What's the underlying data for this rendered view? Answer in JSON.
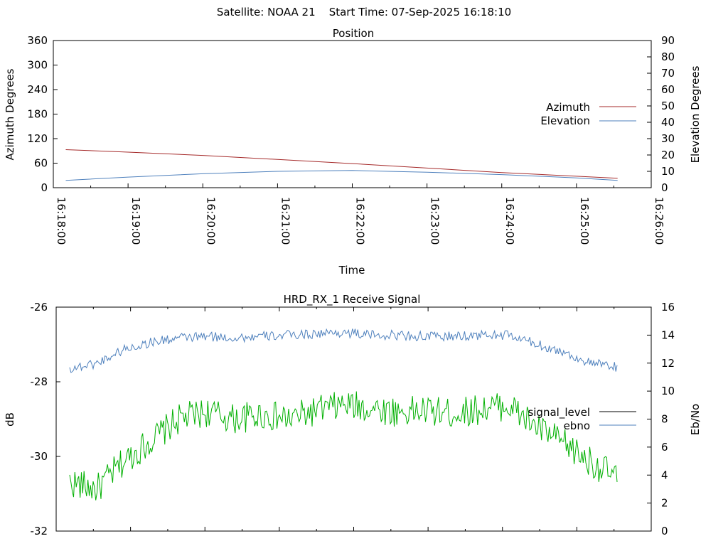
{
  "header": {
    "title": "Satellite: NOAA 21    Start Time: 07-Sep-2025 16:18:10"
  },
  "colors": {
    "azimuth": "#a52a2a",
    "elevation": "#4f81bd",
    "signal_level": "#00b000",
    "ebno": "#4f81bd",
    "signal_level_legend": "#000000"
  },
  "chart_data": [
    {
      "type": "line",
      "title": "Position",
      "xlabel": "Time",
      "ylabel_left": "Azimuth Degrees",
      "ylabel_right": "Elevation Degrees",
      "x_ticks": [
        "16:18:00",
        "16:19:00",
        "16:20:00",
        "16:21:00",
        "16:22:00",
        "16:23:00",
        "16:24:00",
        "16:25:00",
        "16:26:00"
      ],
      "xlim_seconds": [
        0,
        480
      ],
      "ylim_left": [
        0,
        360
      ],
      "ylim_right": [
        0,
        90
      ],
      "y_ticks_left": [
        "0",
        "60",
        "120",
        "180",
        "240",
        "300",
        "360"
      ],
      "y_ticks_right": [
        "0",
        "10",
        "20",
        "30",
        "40",
        "50",
        "60",
        "70",
        "80",
        "90"
      ],
      "legend": "right",
      "series": [
        {
          "name": "Azimuth",
          "axis": "left",
          "x": [
            "16:18:10",
            "16:19:00",
            "16:20:00",
            "16:21:00",
            "16:22:00",
            "16:23:00",
            "16:24:00",
            "16:25:00",
            "16:25:33"
          ],
          "values": [
            93,
            87,
            79,
            69,
            59,
            48,
            37,
            28,
            23
          ]
        },
        {
          "name": "Elevation",
          "axis": "right",
          "x": [
            "16:18:10",
            "16:19:00",
            "16:20:00",
            "16:21:00",
            "16:22:00",
            "16:23:00",
            "16:24:00",
            "16:25:00",
            "16:25:33"
          ],
          "values": [
            4.5,
            6.5,
            8.5,
            10,
            10.5,
            9.5,
            8,
            6,
            4.5
          ]
        }
      ]
    },
    {
      "type": "line",
      "title": "HRD_RX_1 Receive Signal",
      "ylabel_left": "dB",
      "ylabel_right": "Eb/No",
      "ylim_left": [
        -32,
        -26
      ],
      "ylim_right": [
        0,
        16
      ],
      "y_ticks_left": [
        "-26",
        "-28",
        "-30",
        "-32"
      ],
      "y_ticks_right": [
        "0",
        "2",
        "4",
        "6",
        "8",
        "10",
        "12",
        "14",
        "16"
      ],
      "legend": "right",
      "series": [
        {
          "name": "signal_level",
          "axis": "right",
          "x_frac": [
            0,
            0.05,
            0.1,
            0.15,
            0.2,
            0.25,
            0.3,
            0.35,
            0.4,
            0.45,
            0.5,
            0.55,
            0.6,
            0.65,
            0.7,
            0.75,
            0.8,
            0.85,
            0.9,
            0.95,
            1.0
          ],
          "values": [
            3.5,
            3.0,
            5.0,
            6.5,
            8.0,
            8.5,
            8.0,
            8.3,
            8.0,
            8.6,
            9.0,
            8.8,
            8.5,
            8.6,
            8.4,
            8.7,
            9.0,
            7.5,
            6.3,
            5.0,
            3.8
          ]
        },
        {
          "name": "ebno",
          "axis": "right",
          "x_frac": [
            0,
            0.05,
            0.1,
            0.15,
            0.2,
            0.25,
            0.3,
            0.35,
            0.4,
            0.45,
            0.5,
            0.55,
            0.6,
            0.65,
            0.7,
            0.75,
            0.8,
            0.85,
            0.9,
            0.95,
            1.0
          ],
          "values": [
            11.6,
            12.0,
            13.0,
            13.5,
            13.8,
            13.9,
            13.8,
            13.9,
            14.0,
            14.1,
            14.2,
            14.0,
            14.0,
            13.9,
            13.9,
            14.0,
            14.0,
            13.4,
            12.8,
            12.0,
            11.7
          ]
        }
      ]
    }
  ]
}
